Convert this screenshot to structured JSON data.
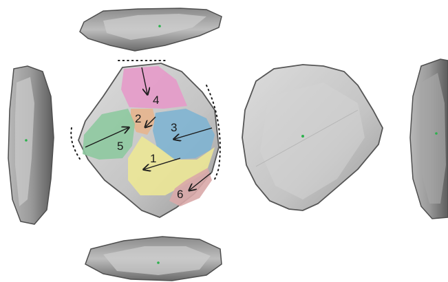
{
  "figure": {
    "views": [
      "top-edge-view",
      "left-edge-view",
      "dorsal-face",
      "ventral-face",
      "right-edge-view",
      "bottom-edge-view"
    ]
  },
  "scars": [
    {
      "id": "1",
      "label": "1",
      "color": "#ece796"
    },
    {
      "id": "2",
      "label": "2",
      "color": "#e7b58e"
    },
    {
      "id": "3",
      "label": "3",
      "color": "#7fb4d2"
    },
    {
      "id": "4",
      "label": "4",
      "color": "#e59ac9"
    },
    {
      "id": "5",
      "label": "5",
      "color": "#8ec9a0"
    },
    {
      "id": "6",
      "label": "6",
      "color": "#d9a8a8"
    }
  ],
  "colors": {
    "stone_fill": "#c9c9c9",
    "stone_edge": "#5a5a5a",
    "stone_shadow": "#8a8a8a",
    "marker": "#2bb24c",
    "arrow": "#1a1a1a",
    "dotted_line": "#1a1a1a"
  }
}
